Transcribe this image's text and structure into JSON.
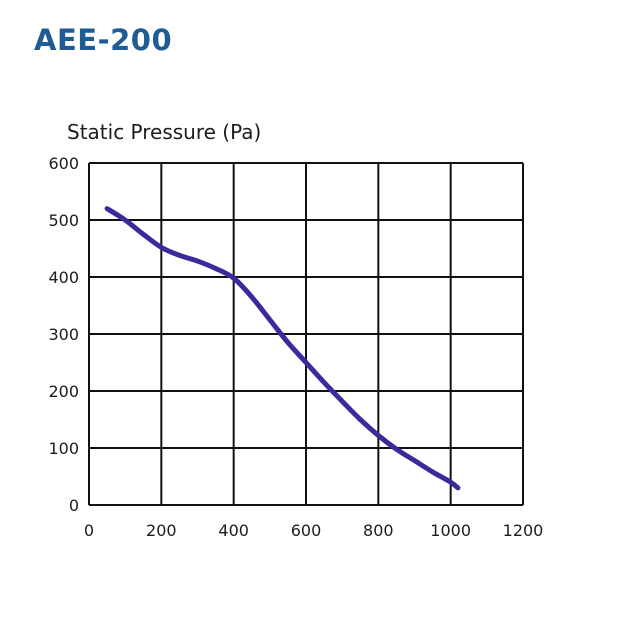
{
  "header": {
    "title": "AEE-200"
  },
  "colors": {
    "title": "#1f5c93",
    "curve": "#3b2a9b",
    "grid": "#111111",
    "text": "#1d1d1d"
  },
  "chart_data": {
    "type": "line",
    "title": "AEE-200",
    "ylabel": "Static Pressure (Pa)",
    "xlabel": "",
    "xlim": [
      0,
      1200
    ],
    "ylim": [
      0,
      600
    ],
    "x_ticks": [
      0,
      200,
      400,
      600,
      800,
      1000,
      1200
    ],
    "y_ticks": [
      0,
      100,
      200,
      300,
      400,
      500,
      600
    ],
    "grid": true,
    "series": [
      {
        "name": "AEE-200",
        "x": [
          50,
          100,
          150,
          200,
          250,
          300,
          350,
          400,
          450,
          500,
          550,
          600,
          650,
          700,
          750,
          800,
          850,
          900,
          950,
          1000,
          1020
        ],
        "y": [
          520,
          500,
          475,
          452,
          438,
          428,
          415,
          398,
          365,
          325,
          285,
          250,
          215,
          182,
          150,
          122,
          98,
          78,
          58,
          40,
          30
        ]
      }
    ]
  }
}
